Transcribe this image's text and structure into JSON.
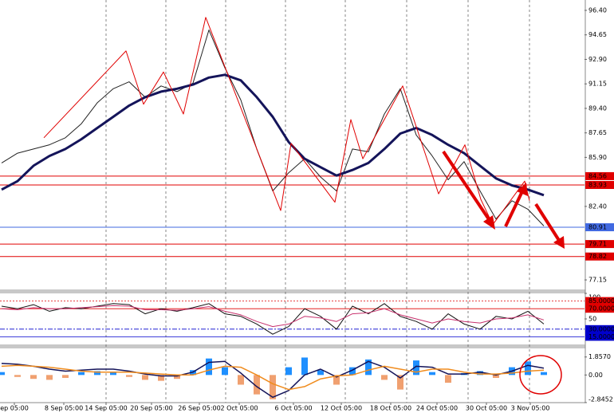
{
  "chart_data": [
    {
      "type": "line",
      "xlim": [
        -0.1,
        36.55
      ],
      "ylim": [
        76.47,
        97.14
      ],
      "yticks": [
        {
          "value": 96.4,
          "label": "96.40"
        },
        94.65,
        {
          "value": 92.9,
          "label": "92.90"
        },
        91.15,
        {
          "value": 89.4,
          "label": "89.40"
        },
        87.65,
        {
          "value": 85.9,
          "label": "85.90"
        },
        {
          "value": 82.4,
          "label": "82.40"
        },
        77.15
      ],
      "levels": [
        {
          "value": 84.56,
          "color": "#e00000"
        },
        {
          "value": 83.93,
          "color": "#e00000"
        },
        {
          "value": 80.91,
          "color": "#4169e1"
        },
        {
          "value": 79.71,
          "color": "#e00000"
        },
        {
          "value": 78.82,
          "color": "#e00000"
        }
      ],
      "series": [
        {
          "type": "line",
          "color": "#222222",
          "width": 1,
          "values": [
            85.5,
            86.2,
            86.5,
            86.8,
            87.3,
            88.3,
            89.8,
            90.8,
            91.3,
            90.2,
            91,
            90.6,
            91.2,
            95,
            92.3,
            90,
            86.5,
            83.5,
            84.8,
            85.8,
            84.5,
            83.5,
            86.5,
            86.3,
            89,
            90.8,
            87.5,
            86,
            84.3,
            85.6,
            83.5,
            81.5,
            82.8,
            82.2,
            81
          ]
        },
        {
          "type": "line",
          "color": "#14145a",
          "width": 3,
          "values": [
            83.6,
            84.2,
            85.3,
            86,
            86.5,
            87.2,
            88,
            88.8,
            89.6,
            90.2,
            90.6,
            90.8,
            91.1,
            91.6,
            91.8,
            91.4,
            90.2,
            88.8,
            87,
            85.8,
            85.2,
            84.6,
            85,
            85.5,
            86.5,
            87.6,
            88,
            87.5,
            86.8,
            86.2,
            85.3,
            84.4,
            83.9,
            83.6,
            83.2
          ]
        },
        {
          "type": "line",
          "color": "#e00000",
          "width": 1,
          "x": [
            2.65,
            7.8,
            8.9,
            10.15,
            11.4,
            12.8,
            17.5,
            18.15,
            20.9,
            21.9,
            22.65,
            25.15,
            27.4,
            29.05,
            30.05,
            30.8,
            32.8,
            33.1
          ],
          "values": [
            87.3,
            93.5,
            89.7,
            92,
            89,
            95.9,
            82.1,
            86.9,
            82.7,
            88.6,
            85.8,
            91,
            83.3,
            86.8,
            82.9,
            81.1,
            84.2,
            82.8
          ]
        }
      ]
    },
    {
      "type": "line",
      "xlim": [
        -0.1,
        36.55
      ],
      "ylim": [
        0,
        100
      ],
      "yticks": [
        100,
        50
      ],
      "levels": [
        {
          "value": 85,
          "label": "85.0000",
          "color": "#e00000"
        },
        {
          "value": 70,
          "label": "70.0000",
          "color": "#e00000"
        },
        {
          "value": 30,
          "label": "30.0000",
          "color": "#0000cd"
        },
        {
          "value": 15,
          "label": "15.0000",
          "color": "#0000cd"
        }
      ],
      "series": [
        {
          "type": "line",
          "color": "#111111",
          "width": 1,
          "values": [
            75,
            70,
            78,
            65,
            72,
            70,
            75,
            80,
            78,
            60,
            70,
            65,
            72,
            80,
            60,
            55,
            40,
            20,
            35,
            70,
            55,
            30,
            75,
            60,
            80,
            55,
            45,
            30,
            60,
            40,
            30,
            55,
            50,
            65,
            40
          ]
        },
        {
          "type": "line",
          "color": "#c8326e",
          "width": 1,
          "values": [
            70,
            68,
            72,
            70,
            70,
            72,
            74,
            76,
            75,
            68,
            68,
            67,
            70,
            74,
            65,
            58,
            45,
            35,
            40,
            55,
            52,
            45,
            60,
            62,
            70,
            58,
            50,
            42,
            50,
            45,
            42,
            50,
            52,
            58,
            48
          ]
        }
      ]
    },
    {
      "type": "combo",
      "xlim": [
        -0.1,
        36.55
      ],
      "ylim": [
        -2.85,
        2.74
      ],
      "yticks": [
        {
          "value": 1.857,
          "label": "1.8570"
        },
        {
          "value": 0,
          "label": "0.00"
        },
        {
          "value": -2.8452,
          "label": "-2.8452"
        }
      ],
      "xticks": [
        {
          "value": 0.8,
          "label": "ep 05:00"
        },
        {
          "value": 3.9,
          "label": "8 Sep 05:00"
        },
        {
          "value": 6.55,
          "label": "14 Sep 05:00"
        },
        {
          "value": 9.4,
          "label": "20 Sep 05:00"
        },
        {
          "value": 12.4,
          "label": "26 Sep 05:00"
        },
        {
          "value": 14.9,
          "label": "2 Oct 05:00"
        },
        {
          "value": 18.3,
          "label": "6 Oct 05:00"
        },
        {
          "value": 21.3,
          "label": "12 Oct 05:00"
        },
        {
          "value": 24.4,
          "label": "18 Oct 05:00"
        },
        {
          "value": 27.3,
          "label": "24 Oct 05:00"
        },
        {
          "value": 30.4,
          "label": "30 Oct 05:00"
        },
        {
          "value": 33.15,
          "label": "3 Nov 05:00"
        }
      ],
      "series": [
        {
          "type": "bar",
          "color": "#1e8fff",
          "down_color": "#f0a070",
          "values": [
            0.3,
            -0.2,
            -0.4,
            -0.5,
            -0.3,
            0.3,
            0.4,
            0.3,
            -0.2,
            -0.5,
            -0.6,
            -0.4,
            0.5,
            1.7,
            0.8,
            -1,
            -2,
            -2.5,
            0.8,
            1.8,
            0.5,
            -1,
            0.8,
            1.6,
            -0.5,
            -1.5,
            1.5,
            0.3,
            -0.8,
            0.2,
            0.4,
            -0.3,
            0.8,
            1.4,
            0.3
          ]
        },
        {
          "type": "line",
          "color": "#14145a",
          "width": 1.5,
          "values": [
            1.2,
            1.1,
            0.9,
            0.6,
            0.4,
            0.5,
            0.6,
            0.6,
            0.4,
            0.1,
            -0.1,
            -0.1,
            0.3,
            1.3,
            1.4,
            0.2,
            -1.2,
            -2.3,
            -1.6,
            0,
            0.6,
            -0.2,
            0.5,
            1.4,
            0.8,
            -0.3,
            0.9,
            0.8,
            0.1,
            0.1,
            0.3,
            0,
            0.4,
            1,
            0.7
          ]
        },
        {
          "type": "line",
          "color": "#f08c1e",
          "width": 1.5,
          "values": [
            0.9,
            1,
            0.9,
            0.8,
            0.6,
            0.4,
            0.3,
            0.3,
            0.3,
            0.2,
            0.1,
            0,
            0,
            0.5,
            0.9,
            0.8,
            0,
            -0.9,
            -1.5,
            -1.2,
            -0.4,
            -0.1,
            0,
            0.5,
            0.9,
            0.6,
            0.3,
            0.6,
            0.6,
            0.3,
            0.1,
            0.1,
            0.2,
            0.4,
            0.5
          ]
        }
      ]
    }
  ]
}
